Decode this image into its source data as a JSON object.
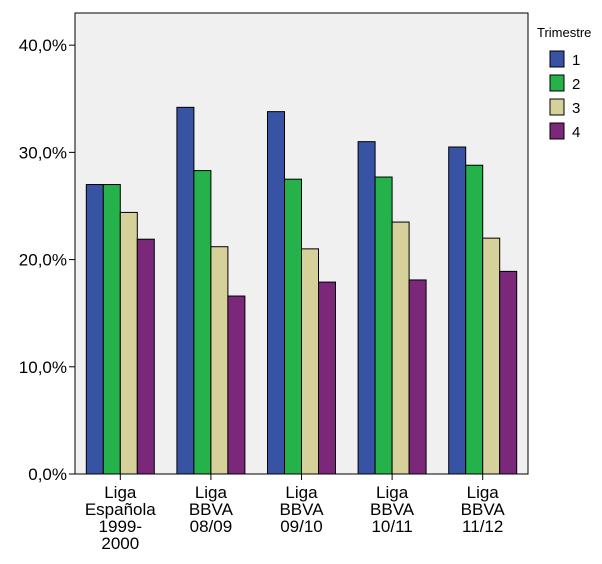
{
  "chart_data": {
    "type": "bar",
    "categories": [
      [
        "Liga",
        "Española",
        "1999-",
        "2000"
      ],
      [
        "Liga",
        "BBVA",
        "08/09"
      ],
      [
        "Liga",
        "BBVA",
        "09/10"
      ],
      [
        "Liga",
        "BBVA",
        "10/11"
      ],
      [
        "Liga",
        "BBVA",
        "11/12"
      ]
    ],
    "series": [
      {
        "name": "1",
        "color": "#3953a4",
        "values": [
          27.0,
          34.2,
          33.8,
          31.0,
          30.5
        ]
      },
      {
        "name": "2",
        "color": "#26b24a",
        "values": [
          27.0,
          28.3,
          27.5,
          27.7,
          28.8
        ]
      },
      {
        "name": "3",
        "color": "#d6d09a",
        "values": [
          24.4,
          21.2,
          21.0,
          23.5,
          22.0
        ]
      },
      {
        "name": "4",
        "color": "#7b287a",
        "values": [
          21.9,
          16.6,
          17.9,
          18.1,
          18.9
        ]
      }
    ],
    "yticks": [
      "0,0%",
      "10,0%",
      "20,0%",
      "30,0%",
      "40,0%"
    ],
    "ytick_values": [
      0,
      10,
      20,
      30,
      40
    ],
    "ylim": [
      0,
      43
    ],
    "legend_title": "Trimestre",
    "legend_position": "right",
    "plot_background": "#f0f0f0"
  }
}
